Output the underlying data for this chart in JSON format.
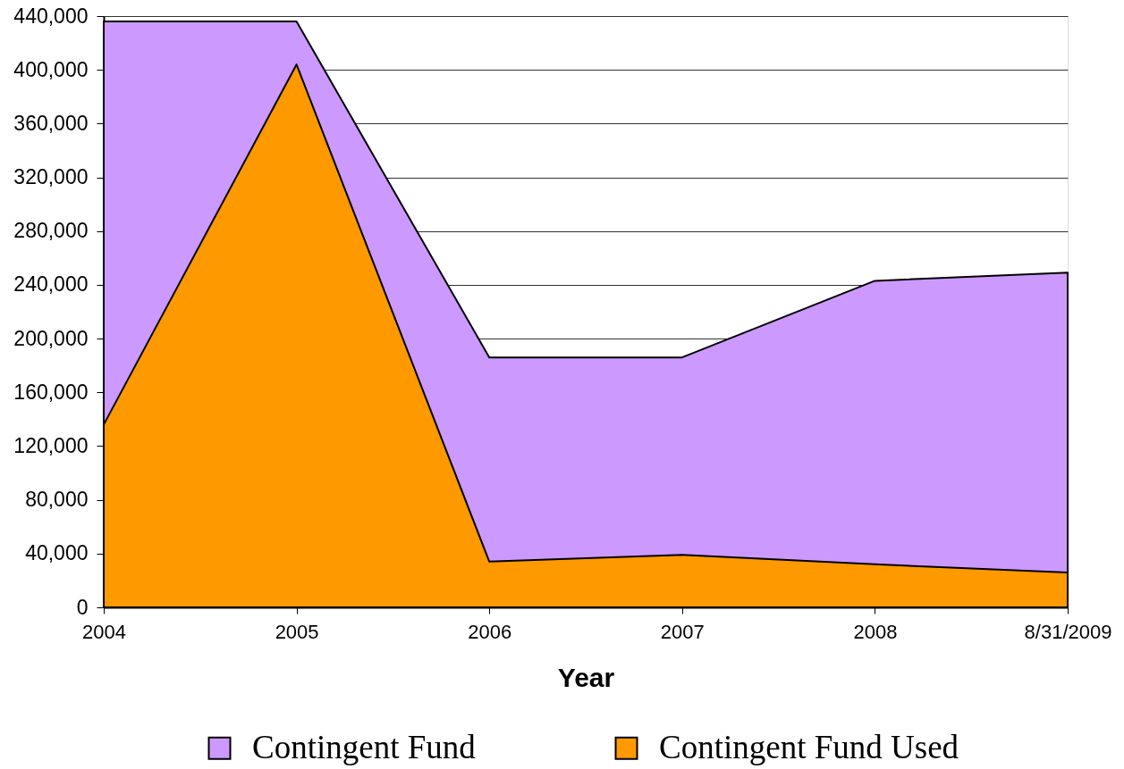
{
  "chart_data": {
    "type": "area",
    "categories": [
      "2004",
      "2005",
      "2006",
      "2007",
      "2008",
      "8/31/2009"
    ],
    "series": [
      {
        "name": "Contingent Fund",
        "color": "#cc99ff",
        "values": [
          436000,
          436000,
          186000,
          186000,
          243000,
          249000
        ]
      },
      {
        "name": "Contingent Fund Used",
        "color": "#ff9900",
        "values": [
          136000,
          404000,
          34000,
          39000,
          32000,
          26000
        ]
      }
    ],
    "xlabel": "Year",
    "ylim": [
      0,
      440000
    ],
    "yticks": [
      0,
      {
        "value": 40000,
        "label": "40,000"
      },
      {
        "value": 80000,
        "label": "80,000"
      },
      {
        "value": 120000,
        "label": "120,000"
      },
      {
        "value": 160000,
        "label": "160,000"
      },
      {
        "value": 200000,
        "label": "200,000"
      },
      {
        "value": 240000,
        "label": "240,000"
      },
      {
        "value": 280000,
        "label": "280,000"
      },
      {
        "value": 320000,
        "label": "320,000"
      },
      {
        "value": 360000,
        "label": "360,000"
      },
      {
        "value": 400000,
        "label": "400,000"
      },
      {
        "value": 440000,
        "label": "440,000"
      }
    ],
    "grid": "y",
    "legend": "bottom"
  }
}
